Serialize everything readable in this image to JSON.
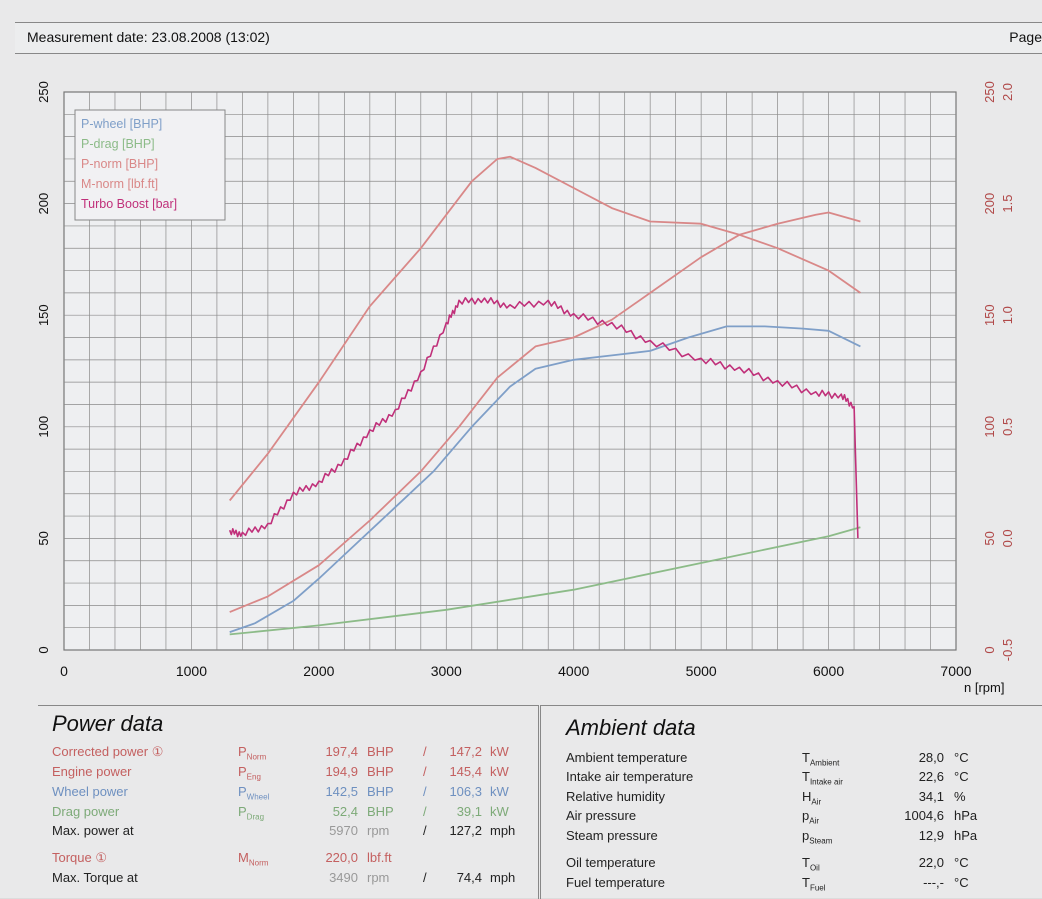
{
  "header": {
    "measurement_date": "Measurement date: 23.08.2008 (13:02)",
    "page_label": "Page"
  },
  "chart_data": {
    "type": "line",
    "xlabel": "n [rpm]",
    "xlim": [
      0,
      7000
    ],
    "x_ticks": [
      "0",
      "1000",
      "2000",
      "3000",
      "4000",
      "5000",
      "6000",
      "7000"
    ],
    "ylim_left": [
      0,
      250
    ],
    "y_ticks_left": [
      "0",
      "50",
      "100",
      "150",
      "200",
      "250"
    ],
    "y_ticks_right_outer": [
      "0",
      "50",
      "100",
      "150",
      "200",
      "250"
    ],
    "ylim_boost": [
      -0.5,
      2.0
    ],
    "y_ticks_right_inner": [
      "-0.5",
      "0.0",
      "0.5",
      "1.0",
      "1.5",
      "2.0"
    ],
    "grid": true,
    "legend_position": "top-left",
    "series": [
      {
        "name": "P-wheel [BHP]",
        "color": "#7f9fc8",
        "axis": "left",
        "points": [
          [
            1300,
            8
          ],
          [
            1500,
            12
          ],
          [
            1800,
            22
          ],
          [
            2000,
            32
          ],
          [
            2300,
            48
          ],
          [
            2600,
            64
          ],
          [
            2900,
            80
          ],
          [
            3200,
            100
          ],
          [
            3500,
            118
          ],
          [
            3700,
            126
          ],
          [
            4000,
            130
          ],
          [
            4300,
            132
          ],
          [
            4600,
            134
          ],
          [
            4900,
            140
          ],
          [
            5200,
            145
          ],
          [
            5500,
            145
          ],
          [
            5800,
            144
          ],
          [
            6000,
            143
          ],
          [
            6250,
            136
          ]
        ]
      },
      {
        "name": "P-drag [BHP]",
        "color": "#8cbb88",
        "axis": "left",
        "points": [
          [
            1300,
            7
          ],
          [
            2000,
            11
          ],
          [
            3000,
            18
          ],
          [
            4000,
            27
          ],
          [
            5000,
            39
          ],
          [
            6000,
            51
          ],
          [
            6250,
            55
          ]
        ]
      },
      {
        "name": "P-norm [BHP]",
        "color": "#d98888",
        "axis": "left",
        "points": [
          [
            1300,
            17
          ],
          [
            1600,
            24
          ],
          [
            2000,
            38
          ],
          [
            2400,
            58
          ],
          [
            2800,
            80
          ],
          [
            3100,
            100
          ],
          [
            3400,
            122
          ],
          [
            3700,
            136
          ],
          [
            4000,
            140
          ],
          [
            4300,
            148
          ],
          [
            4600,
            160
          ],
          [
            5000,
            176
          ],
          [
            5300,
            186
          ],
          [
            5600,
            191
          ],
          [
            5900,
            195
          ],
          [
            6000,
            196
          ],
          [
            6250,
            192
          ]
        ]
      },
      {
        "name": "M-norm [lbf.ft]",
        "color": "#d98888",
        "axis": "left",
        "points": [
          [
            1300,
            67
          ],
          [
            1600,
            88
          ],
          [
            2000,
            120
          ],
          [
            2400,
            154
          ],
          [
            2800,
            180
          ],
          [
            3200,
            210
          ],
          [
            3400,
            220
          ],
          [
            3500,
            221
          ],
          [
            3700,
            216
          ],
          [
            4000,
            207
          ],
          [
            4300,
            198
          ],
          [
            4600,
            192
          ],
          [
            5000,
            191
          ],
          [
            5300,
            186
          ],
          [
            5600,
            180
          ],
          [
            6000,
            170
          ],
          [
            6250,
            160
          ]
        ]
      },
      {
        "name": "Turbo Boost [bar]",
        "color": "#c0307a",
        "axis": "boost",
        "points": [
          [
            1300,
            0.03
          ],
          [
            1400,
            0.02
          ],
          [
            1600,
            0.06
          ],
          [
            1800,
            0.2
          ],
          [
            2000,
            0.25
          ],
          [
            2200,
            0.35
          ],
          [
            2400,
            0.48
          ],
          [
            2600,
            0.57
          ],
          [
            2800,
            0.74
          ],
          [
            3000,
            0.96
          ],
          [
            3100,
            1.06
          ],
          [
            3300,
            1.07
          ],
          [
            3500,
            1.04
          ],
          [
            3800,
            1.06
          ],
          [
            4000,
            1.0
          ],
          [
            4300,
            0.96
          ],
          [
            4600,
            0.88
          ],
          [
            5000,
            0.8
          ],
          [
            5300,
            0.76
          ],
          [
            5600,
            0.7
          ],
          [
            5900,
            0.65
          ],
          [
            6100,
            0.64
          ],
          [
            6200,
            0.59
          ],
          [
            6230,
            0.0
          ]
        ]
      }
    ]
  },
  "power_data": {
    "title": "Power data",
    "rows": [
      {
        "label": "Corrected power ①",
        "symbol": "P",
        "sub": "Norm",
        "v1": "197,4",
        "u1": "BHP",
        "sep": "/",
        "v2": "147,2",
        "u2": "kW",
        "color": "#c46060"
      },
      {
        "label": "Engine power",
        "symbol": "P",
        "sub": "Eng",
        "v1": "194,9",
        "u1": "BHP",
        "sep": "/",
        "v2": "145,4",
        "u2": "kW",
        "color": "#c46060"
      },
      {
        "label": "Wheel power",
        "symbol": "P",
        "sub": "Wheel",
        "v1": "142,5",
        "u1": "BHP",
        "sep": "/",
        "v2": "106,3",
        "u2": "kW",
        "color": "#6e90c0"
      },
      {
        "label": "Drag power",
        "symbol": "P",
        "sub": "Drag",
        "v1": "52,4",
        "u1": "BHP",
        "sep": "/",
        "v2": "39,1",
        "u2": "kW",
        "color": "#7daa78"
      },
      {
        "label": "Max. power at",
        "symbol": "",
        "sub": "",
        "v1": "5970",
        "u1": "rpm",
        "sep": "/",
        "v2": "127,2",
        "u2": "mph",
        "color": "#222222"
      },
      {
        "label": "Torque ①",
        "symbol": "M",
        "sub": "Norm",
        "v1": "220,0",
        "u1": "lbf.ft",
        "sep": "",
        "v2": "",
        "u2": "",
        "color": "#c46060"
      },
      {
        "label": "Max. Torque at",
        "symbol": "",
        "sub": "",
        "v1": "3490",
        "u1": "rpm",
        "sep": "/",
        "v2": "74,4",
        "u2": "mph",
        "color": "#222222"
      }
    ]
  },
  "ambient_data": {
    "title": "Ambient data",
    "rows": [
      {
        "label": "Ambient temperature",
        "symbol": "T",
        "sub": "Ambient",
        "value": "28,0",
        "unit": "°C"
      },
      {
        "label": "Intake air temperature",
        "symbol": "T",
        "sub": "Intake air",
        "value": "22,6",
        "unit": "°C"
      },
      {
        "label": "Relative humidity",
        "symbol": "H",
        "sub": "Air",
        "value": "34,1",
        "unit": "%"
      },
      {
        "label": "Air pressure",
        "symbol": "p",
        "sub": "Air",
        "value": "1004,6",
        "unit": "hPa"
      },
      {
        "label": "Steam pressure",
        "symbol": "p",
        "sub": "Steam",
        "value": "12,9",
        "unit": "hPa"
      },
      {
        "label": "Oil temperature",
        "symbol": "T",
        "sub": "Oil",
        "value": "22,0",
        "unit": "°C"
      },
      {
        "label": "Fuel temperature",
        "symbol": "T",
        "sub": "Fuel",
        "value": "---,-",
        "unit": "°C"
      }
    ]
  }
}
